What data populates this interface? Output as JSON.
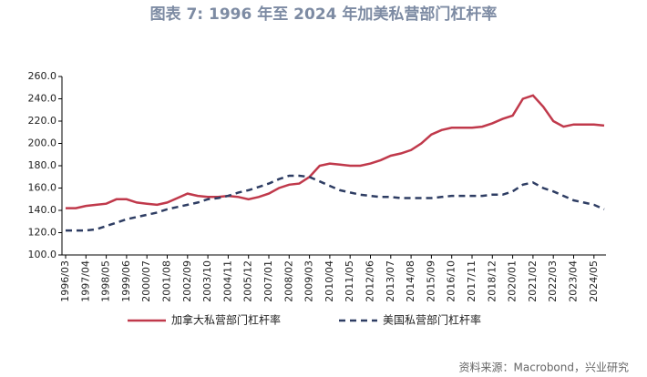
{
  "chart_data": {
    "type": "line",
    "title": "图表 7:  1996 年至 2024 年加美私营部门杠杆率",
    "source": "资料来源：Macrobond，兴业研究",
    "categories": [
      "1996/03",
      null,
      "1997/04",
      null,
      "1998/05",
      null,
      "1999/06",
      null,
      "2000/07",
      null,
      "2001/08",
      null,
      "2002/09",
      null,
      "2003/10",
      null,
      "2004/11",
      null,
      "2005/12",
      null,
      "2007/01",
      null,
      "2008/02",
      null,
      "2009/03",
      null,
      "2010/04",
      null,
      "2011/05",
      null,
      "2012/06",
      null,
      "2013/07",
      null,
      "2014/08",
      null,
      "2015/09",
      null,
      "2016/10",
      null,
      "2017/11",
      null,
      "2018/12",
      null,
      "2020/01",
      null,
      "2021/02",
      null,
      "2022/03",
      null,
      "2023/04",
      null,
      "2024/05",
      null
    ],
    "series": [
      {
        "name": "加拿大私营部门杠杆率",
        "color": "#c0394b",
        "dash": false,
        "values": [
          142,
          142,
          144,
          145,
          146,
          150,
          150,
          147,
          146,
          145,
          147,
          151,
          155,
          153,
          152,
          152,
          153,
          152,
          150,
          152,
          155,
          160,
          163,
          164,
          170,
          180,
          182,
          181,
          180,
          180,
          182,
          185,
          189,
          191,
          194,
          200,
          208,
          212,
          214,
          214,
          214,
          215,
          218,
          222,
          225,
          240,
          243,
          233,
          220,
          215,
          217,
          217,
          217,
          216
        ]
      },
      {
        "name": "美国私营部门杠杆率",
        "color": "#2e3d63",
        "dash": true,
        "values": [
          122,
          122,
          122,
          123,
          126,
          129,
          132,
          134,
          136,
          138,
          141,
          143,
          145,
          147,
          150,
          151,
          153,
          156,
          158,
          161,
          164,
          168,
          171,
          171,
          170,
          166,
          162,
          158,
          156,
          154,
          153,
          152,
          152,
          151,
          151,
          151,
          151,
          152,
          153,
          153,
          153,
          153,
          154,
          154,
          157,
          163,
          165,
          160,
          157,
          153,
          149,
          147,
          145,
          141
        ]
      }
    ],
    "ylim": [
      100,
      260
    ],
    "yticks": [
      {
        "value": 100,
        "label": "100.0"
      },
      {
        "value": 120,
        "label": "120.0"
      },
      {
        "value": 140,
        "label": "140.0"
      },
      {
        "value": 160,
        "label": "160.0"
      },
      {
        "value": 180,
        "label": "180.0"
      },
      {
        "value": 200,
        "label": "200.0"
      },
      {
        "value": 220,
        "label": "220.0"
      },
      {
        "value": 240,
        "label": "240.0"
      },
      {
        "value": 260,
        "label": "260.0"
      }
    ],
    "grid": false,
    "legend": "bottom"
  }
}
